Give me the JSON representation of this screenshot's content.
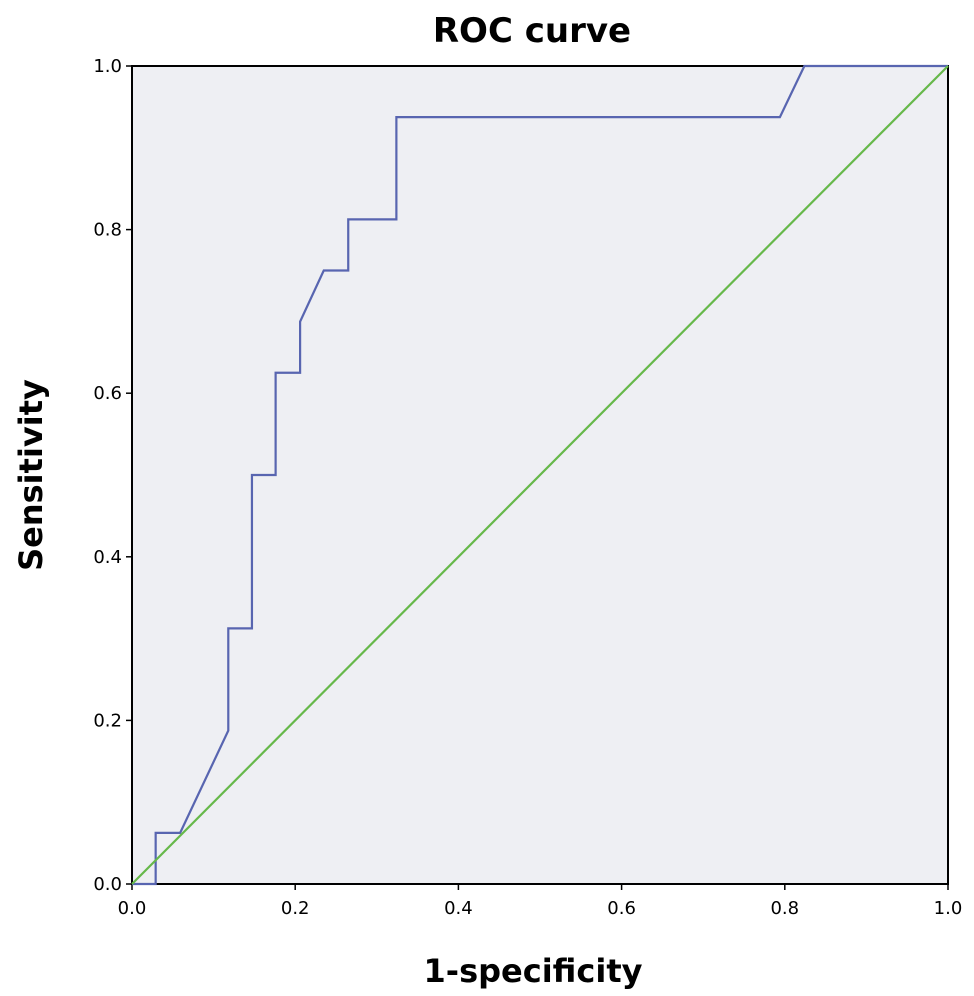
{
  "chart_data": {
    "type": "line",
    "title": "ROC curve",
    "xlabel": "1-specificity",
    "ylabel": "Sensitivity",
    "xlim": [
      0,
      1
    ],
    "ylim": [
      0,
      1
    ],
    "xticks": [
      "0.0",
      "0.2",
      "0.4",
      "0.6",
      "0.8",
      "1.0"
    ],
    "yticks": [
      "0.0",
      "0.2",
      "0.4",
      "0.6",
      "0.8",
      "1.0"
    ],
    "grid": false,
    "background": "#eeeff3",
    "series": [
      {
        "color": "#5865b0",
        "x": [
          0.0,
          0.029,
          0.029,
          0.059,
          0.118,
          0.118,
          0.147,
          0.147,
          0.176,
          0.176,
          0.206,
          0.206,
          0.235,
          0.265,
          0.265,
          0.324,
          0.324,
          0.794,
          0.824,
          1.0
        ],
        "y": [
          0.0,
          0.0,
          0.0625,
          0.0625,
          0.1875,
          0.3125,
          0.3125,
          0.5,
          0.5,
          0.625,
          0.625,
          0.6875,
          0.75,
          0.75,
          0.8125,
          0.8125,
          0.9375,
          0.9375,
          1.0,
          1.0
        ]
      },
      {
        "color": "#66b84a",
        "x": [
          0,
          1
        ],
        "y": [
          0,
          1
        ]
      }
    ]
  }
}
